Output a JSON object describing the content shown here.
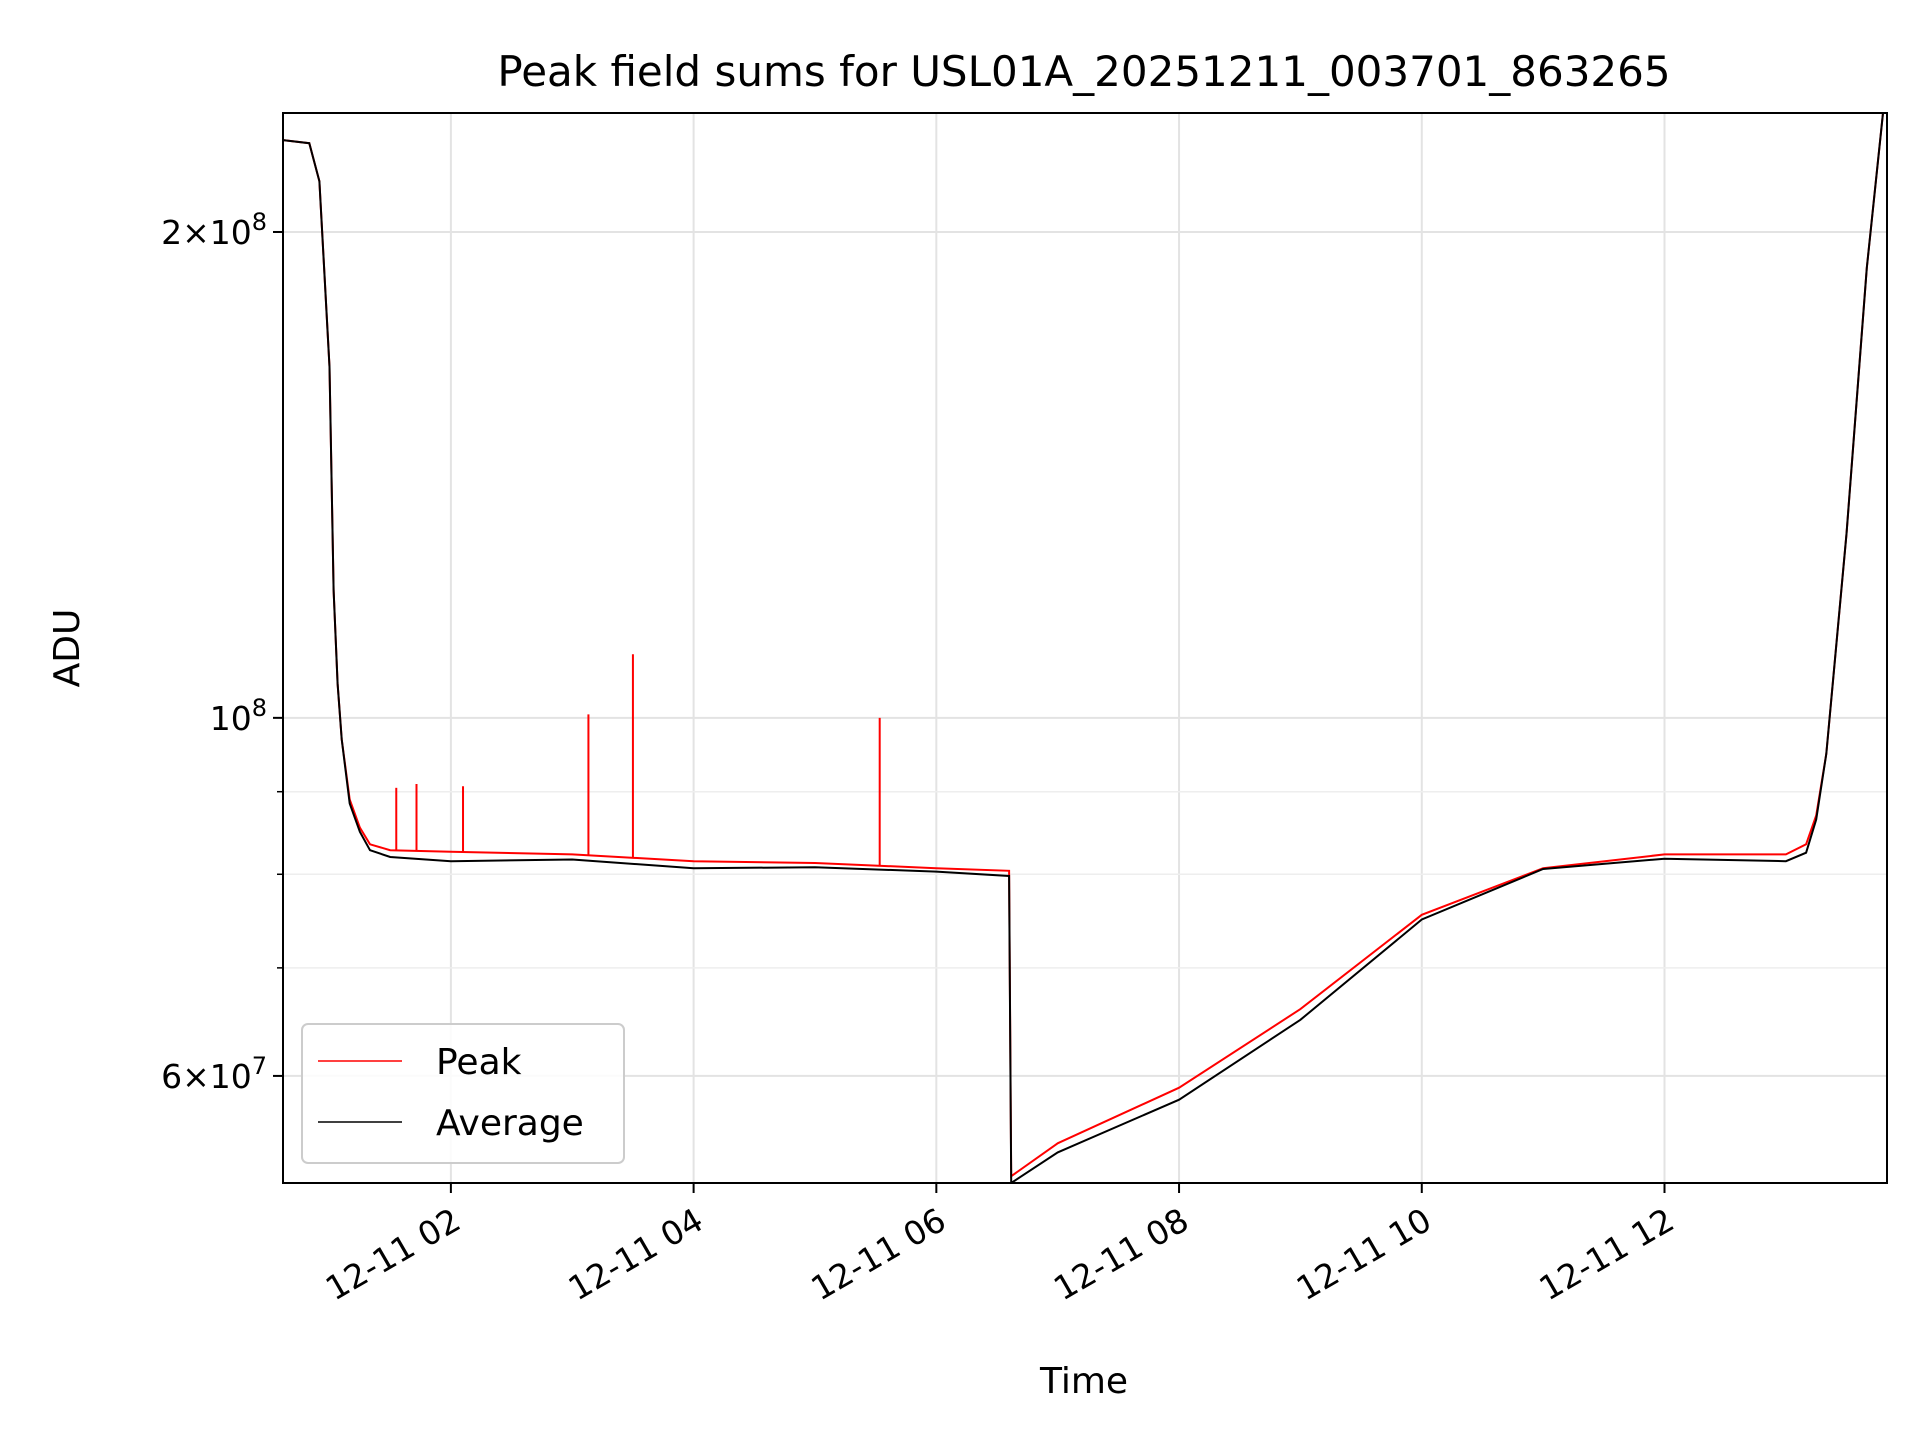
{
  "chart_data": {
    "type": "line",
    "title": "Peak field sums for USL01A_20251211_003701_863265",
    "xlabel": "Time",
    "ylabel": "ADU",
    "y_scale": "log",
    "ylim": [
      51500000,
      237000000
    ],
    "xlim": [
      "2025-12-11 00:37",
      "2025-12-11 13:50"
    ],
    "grid": true,
    "legend_position": "lower-left",
    "x_ticks": [
      {
        "value": "2025-12-11 02:00",
        "label": "12-11 02"
      },
      {
        "value": "2025-12-11 04:00",
        "label": "12-11 04"
      },
      {
        "value": "2025-12-11 06:00",
        "label": "12-11 06"
      },
      {
        "value": "2025-12-11 08:00",
        "label": "12-11 08"
      },
      {
        "value": "2025-12-11 10:00",
        "label": "12-11 10"
      },
      {
        "value": "2025-12-11 12:00",
        "label": "12-11 12"
      }
    ],
    "y_major_ticks": [
      {
        "value": 200000000,
        "mantissa": "2",
        "exponent": "8"
      },
      {
        "value": 100000000,
        "mantissa": "",
        "exponent": "8"
      },
      {
        "value": 60000000,
        "mantissa": "6",
        "exponent": "7"
      }
    ],
    "y_minor_ticks": [
      70000000,
      80000000,
      90000000,
      300000000
    ],
    "series": [
      {
        "name": "Peak",
        "color": "#ff0000",
        "x": [
          "2025-12-11 00:37",
          "2025-12-11 00:50",
          "2025-12-11 00:55",
          "2025-12-11 01:00",
          "2025-12-11 01:02",
          "2025-12-11 01:04",
          "2025-12-11 01:06",
          "2025-12-11 01:10",
          "2025-12-11 01:15",
          "2025-12-11 01:20",
          "2025-12-11 01:30",
          "2025-12-11 02:00",
          "2025-12-11 03:00",
          "2025-12-11 04:00",
          "2025-12-11 05:00",
          "2025-12-11 06:00",
          "2025-12-11 06:36",
          "2025-12-11 06:37",
          "2025-12-11 07:00",
          "2025-12-11 08:00",
          "2025-12-11 09:00",
          "2025-12-11 10:00",
          "2025-12-11 11:00",
          "2025-12-11 12:00",
          "2025-12-11 13:00",
          "2025-12-11 13:10",
          "2025-12-11 13:15",
          "2025-12-11 13:20",
          "2025-12-11 13:30",
          "2025-12-11 13:40",
          "2025-12-11 13:48"
        ],
        "y": [
          228000000,
          227000000,
          215000000,
          165000000,
          120000000,
          105000000,
          97000000,
          89000000,
          85500000,
          83500000,
          82800000,
          82600000,
          82300000,
          81500000,
          81300000,
          80700000,
          80400000,
          52000000,
          54500000,
          59000000,
          66000000,
          75500000,
          80700000,
          82300000,
          82300000,
          83500000,
          87000000,
          95000000,
          130000000,
          190000000,
          237000000
        ]
      },
      {
        "name": "Average",
        "color": "#000000",
        "x": [
          "2025-12-11 00:37",
          "2025-12-11 00:50",
          "2025-12-11 00:55",
          "2025-12-11 01:00",
          "2025-12-11 01:02",
          "2025-12-11 01:04",
          "2025-12-11 01:06",
          "2025-12-11 01:10",
          "2025-12-11 01:15",
          "2025-12-11 01:20",
          "2025-12-11 01:30",
          "2025-12-11 02:00",
          "2025-12-11 03:00",
          "2025-12-11 04:00",
          "2025-12-11 05:00",
          "2025-12-11 06:00",
          "2025-12-11 06:36",
          "2025-12-11 06:37",
          "2025-12-11 07:00",
          "2025-12-11 08:00",
          "2025-12-11 09:00",
          "2025-12-11 10:00",
          "2025-12-11 11:00",
          "2025-12-11 12:00",
          "2025-12-11 13:00",
          "2025-12-11 13:10",
          "2025-12-11 13:15",
          "2025-12-11 13:20",
          "2025-12-11 13:30",
          "2025-12-11 13:40",
          "2025-12-11 13:48"
        ],
        "y": [
          228000000,
          227000000,
          215000000,
          165000000,
          120000000,
          105000000,
          97000000,
          88500000,
          85000000,
          82800000,
          82000000,
          81500000,
          81700000,
          80700000,
          80800000,
          80300000,
          79800000,
          51500000,
          53800000,
          58000000,
          65000000,
          75000000,
          80600000,
          81800000,
          81500000,
          82500000,
          86500000,
          95000000,
          130000000,
          190000000,
          237000000
        ]
      }
    ],
    "peak_spikes": [
      {
        "x": "2025-12-11 01:33",
        "y": 90500000
      },
      {
        "x": "2025-12-11 01:43",
        "y": 91000000
      },
      {
        "x": "2025-12-11 02:06",
        "y": 90700000
      },
      {
        "x": "2025-12-11 03:08",
        "y": 100500000
      },
      {
        "x": "2025-12-11 03:30",
        "y": 109500000
      },
      {
        "x": "2025-12-11 05:32",
        "y": 100000000
      }
    ]
  }
}
